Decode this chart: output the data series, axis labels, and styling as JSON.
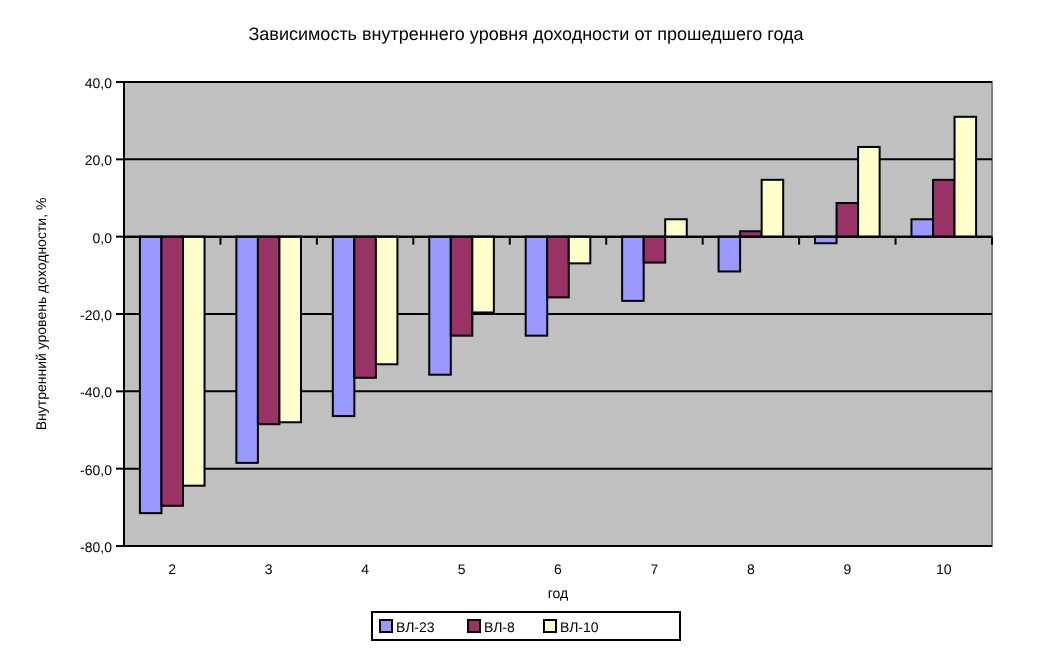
{
  "chart_data": {
    "type": "bar",
    "title": "Зависимость внутреннего уровня доходности от прошедшего года",
    "xlabel": "год",
    "ylabel": "Внутренний уровень доходности, %",
    "categories": [
      "2",
      "3",
      "4",
      "5",
      "6",
      "7",
      "8",
      "9",
      "10"
    ],
    "series": [
      {
        "name": "ВЛ-23",
        "color": "#9999ff",
        "values": [
          -71.5,
          -58.5,
          -46.4,
          -35.7,
          -25.6,
          -16.6,
          -9,
          -1.7,
          4.5
        ]
      },
      {
        "name": "ВЛ-8",
        "color": "#993366",
        "values": [
          -69.6,
          -48.5,
          -36.5,
          -25.6,
          -15.7,
          -6.7,
          1.4,
          8.7,
          14.7
        ]
      },
      {
        "name": "ВЛ-10",
        "color": "#ffffcc",
        "values": [
          -64.4,
          -48,
          -33,
          -19.6,
          -6.9,
          4.5,
          14.7,
          23.2,
          31
        ]
      }
    ],
    "ylim": [
      -80,
      40
    ],
    "yticks": [
      {
        "value": -80,
        "label": "-80,0"
      },
      {
        "value": -60,
        "label": "-60,0"
      },
      {
        "value": -40,
        "label": "-40,0"
      },
      {
        "value": -20,
        "label": "-20,0"
      },
      {
        "value": 0,
        "label": "0,0"
      },
      {
        "value": 20,
        "label": "20,0"
      },
      {
        "value": 40,
        "label": "40,0"
      }
    ],
    "grid": "y",
    "legend": "bottom"
  }
}
